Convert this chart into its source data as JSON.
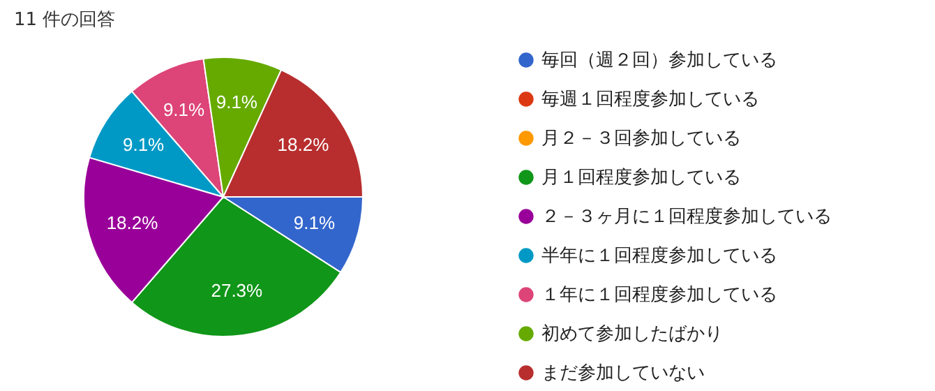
{
  "chart_data": {
    "type": "pie",
    "title": "11 件の回答",
    "categories": [
      "毎回（週２回）参加している",
      "毎週１回程度参加している",
      "月２－３回参加している",
      "月１回程度参加している",
      "２－３ヶ月に１回程度参加している",
      "半年に１回程度参加している",
      "１年に１回程度参加している",
      "初めて参加したばかり",
      "まだ参加していない"
    ],
    "values": [
      9.1,
      0,
      0,
      27.3,
      18.2,
      9.1,
      9.1,
      9.1,
      18.2
    ],
    "colors": [
      "#3366cc",
      "#dc3912",
      "#ff9900",
      "#109618",
      "#990099",
      "#0099c6",
      "#dd4477",
      "#66aa00",
      "#b82e2e"
    ],
    "value_labels": [
      "9.1%",
      null,
      null,
      "27.3%",
      "18.2%",
      "9.1%",
      "9.1%",
      "9.1%",
      "18.2%"
    ],
    "legend": "right"
  }
}
